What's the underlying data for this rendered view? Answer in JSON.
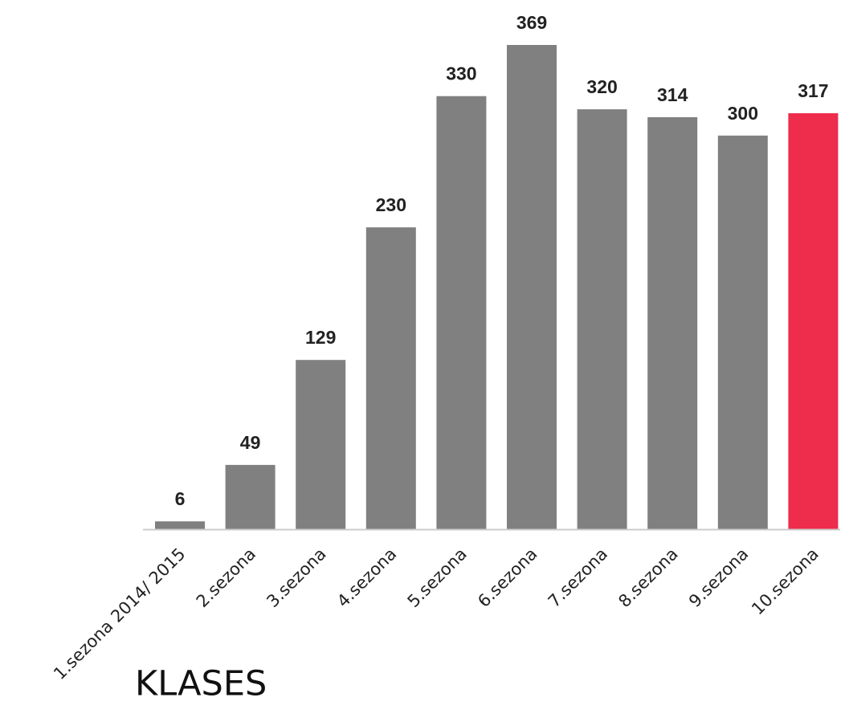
{
  "chart_data": {
    "type": "bar",
    "title": "KLASES",
    "xlabel": "",
    "ylabel": "",
    "categories": [
      "1.sezona 2014/ 2015",
      "2.sezona",
      "3.sezona",
      "4.sezona",
      "5.sezona",
      "6.sezona",
      "7.sezona",
      "8.sezona",
      "9.sezona",
      "10.sezona"
    ],
    "values": [
      6,
      49,
      129,
      230,
      330,
      369,
      320,
      314,
      300,
      317
    ],
    "data_labels": [
      "6",
      "49",
      "129",
      "230",
      "330",
      "369",
      "320",
      "314",
      "300",
      "317"
    ],
    "ylim": [
      0,
      369
    ],
    "grid": false,
    "legend": "none",
    "colors": {
      "bar": "#808080",
      "highlight": "#ee2c4b",
      "label": "#222222",
      "axis": "#cccccc"
    },
    "highlight_index": 9
  }
}
